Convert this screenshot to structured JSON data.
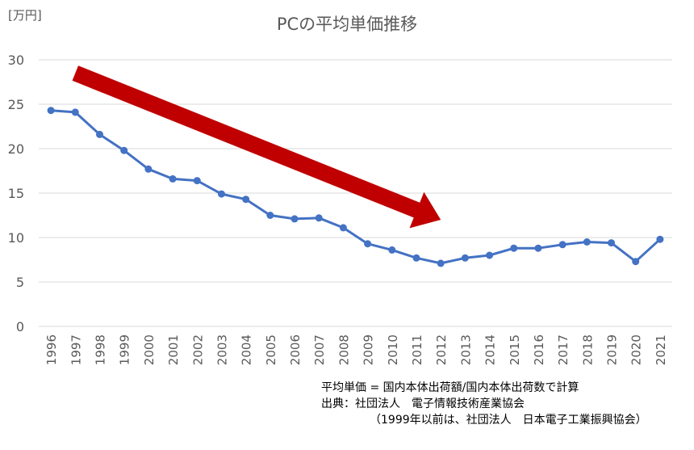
{
  "unit_label": "[万円]",
  "notes": [
    "平均単価 = 国内本体出荷額/国内本体出荷数で計算",
    "出典：社団法人　電子情報技術産業協会",
    "（1999年以前は、社団法人　日本電子工業振興協会）"
  ],
  "colors": {
    "line": "#4472C4",
    "arrow": "#C00000",
    "grid": "#D9D9D9",
    "axis_text": "#595959"
  },
  "chart_data": {
    "type": "line",
    "title": "PCの平均単価推移",
    "xlabel": "",
    "ylabel": "[万円]",
    "categories": [
      "1996",
      "1997",
      "1998",
      "1999",
      "2000",
      "2001",
      "2002",
      "2003",
      "2004",
      "2005",
      "2006",
      "2007",
      "2008",
      "2009",
      "2010",
      "2011",
      "2012",
      "2013",
      "2014",
      "2015",
      "2016",
      "2017",
      "2018",
      "2019",
      "2020",
      "2021"
    ],
    "series": [
      {
        "values": [
          24.3,
          24.1,
          21.6,
          19.8,
          17.7,
          16.6,
          16.4,
          14.9,
          14.3,
          12.5,
          12.1,
          12.2,
          11.1,
          9.3,
          8.6,
          7.7,
          7.1,
          7.7,
          8.0,
          8.8,
          8.8,
          9.2,
          9.5,
          9.4,
          7.3,
          9.8
        ]
      }
    ],
    "ylim": [
      0,
      30
    ],
    "yticks": [
      0,
      5,
      10,
      15,
      20,
      25,
      30
    ],
    "grid": true,
    "legend": "none",
    "annotations": [
      {
        "type": "arrow",
        "from": [
          "1997",
          28.5
        ],
        "to": [
          "2012",
          12.0
        ]
      }
    ]
  }
}
